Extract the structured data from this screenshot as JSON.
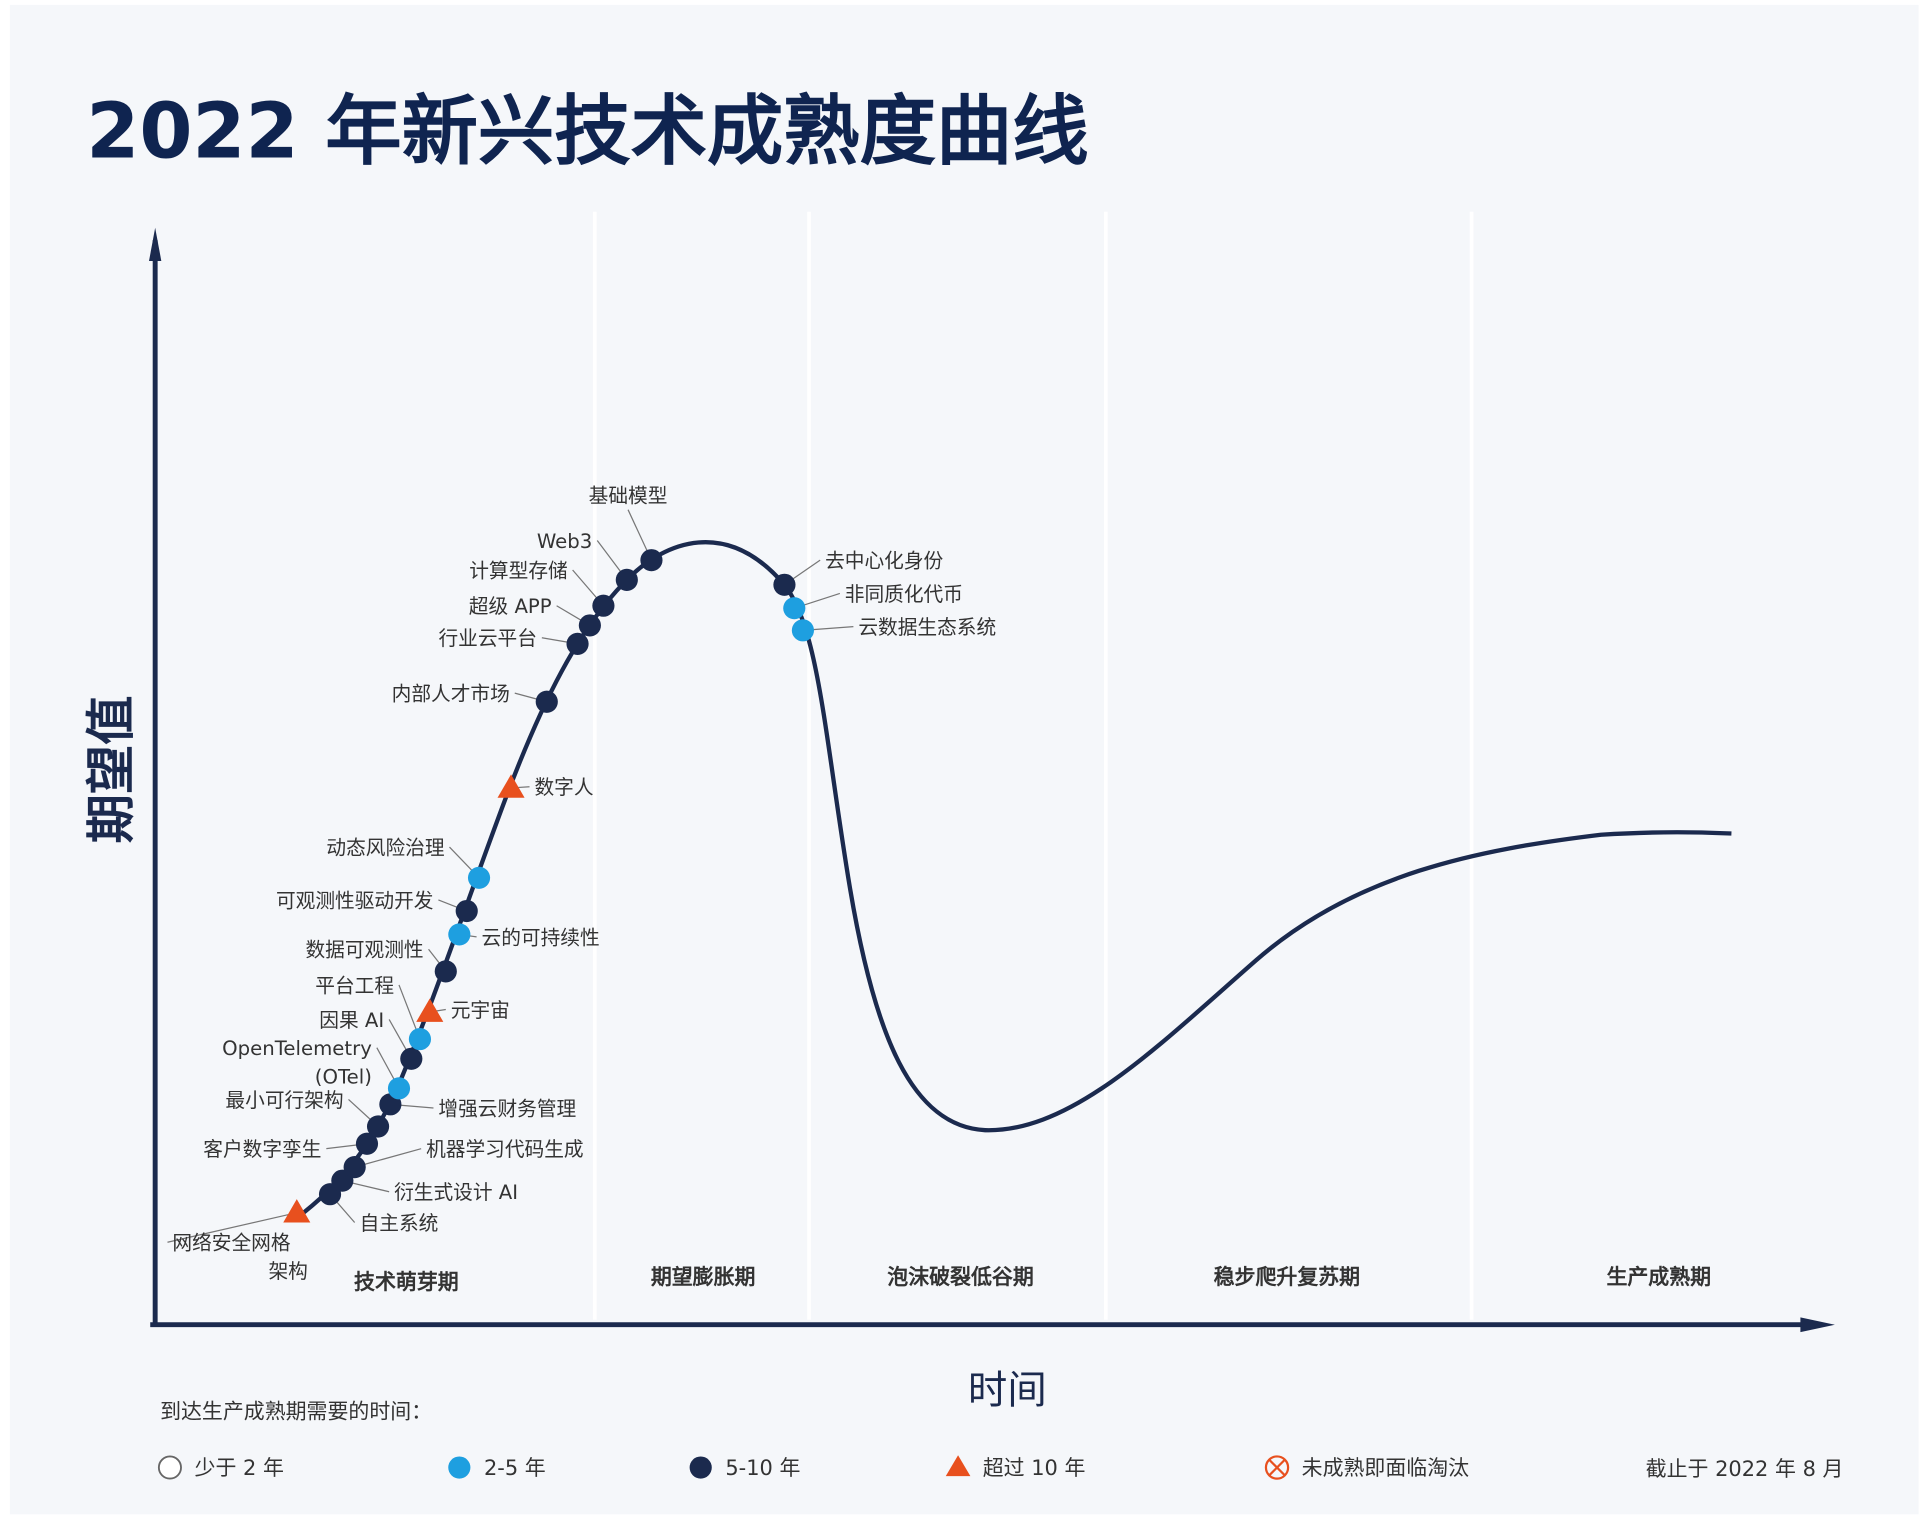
{
  "title": "2022 年新兴技术成熟度曲线",
  "y_axis_label": "期望值",
  "x_axis_label": "时间",
  "phases": [
    "技术萌芽期",
    "期望膨胀期",
    "泡沫破裂低谷期",
    "稳步爬升复苏期",
    "生产成熟期"
  ],
  "legend": {
    "title": "到达生产成熟期需要的时间：",
    "items": [
      {
        "key": "lt2",
        "label": "少于 2 年"
      },
      {
        "key": "2to5",
        "label": "2-5 年"
      },
      {
        "key": "5to10",
        "label": "5-10 年"
      },
      {
        "key": "gt10",
        "label": "超过 10 年"
      },
      {
        "key": "obsolete",
        "label": "未成熟即面临淘汰"
      }
    ],
    "as_of": "截止于 2022 年 8 月"
  },
  "colors": {
    "navy": "#1b2a4e",
    "blue": "#1e9fe0",
    "orange": "#e8501e",
    "background": "#f5f7fa"
  },
  "technologies": [
    {
      "name": "网络安全网格",
      "name2": "架构",
      "category": "gt10"
    },
    {
      "name": "自主系统",
      "category": "5to10"
    },
    {
      "name": "衍生式设计 AI",
      "category": "5to10"
    },
    {
      "name": "机器学习代码生成",
      "category": "5to10"
    },
    {
      "name": "客户数字孪生",
      "category": "5to10"
    },
    {
      "name": "最小可行架构",
      "category": "5to10"
    },
    {
      "name": "增强云财务管理",
      "category": "5to10"
    },
    {
      "name": "OpenTelemetry",
      "name2": "(OTel)",
      "category": "2to5"
    },
    {
      "name": "因果 AI",
      "category": "5to10"
    },
    {
      "name": "平台工程",
      "category": "2to5"
    },
    {
      "name": "元宇宙",
      "category": "gt10"
    },
    {
      "name": "数据可观测性",
      "category": "5to10"
    },
    {
      "name": "云的可持续性",
      "category": "2to5"
    },
    {
      "name": "可观测性驱动开发",
      "category": "5to10"
    },
    {
      "name": "动态风险治理",
      "category": "2to5"
    },
    {
      "name": "数字人",
      "category": "gt10"
    },
    {
      "name": "内部人才市场",
      "category": "5to10"
    },
    {
      "name": "行业云平台",
      "category": "5to10"
    },
    {
      "name": "超级 APP",
      "category": "5to10"
    },
    {
      "name": "计算型存储",
      "category": "5to10"
    },
    {
      "name": "Web3",
      "category": "5to10"
    },
    {
      "name": "基础模型",
      "category": "5to10"
    },
    {
      "name": "去中心化身份",
      "category": "5to10"
    },
    {
      "name": "非同质化代币",
      "category": "2to5"
    },
    {
      "name": "云数据生态系统",
      "category": "2to5"
    }
  ]
}
